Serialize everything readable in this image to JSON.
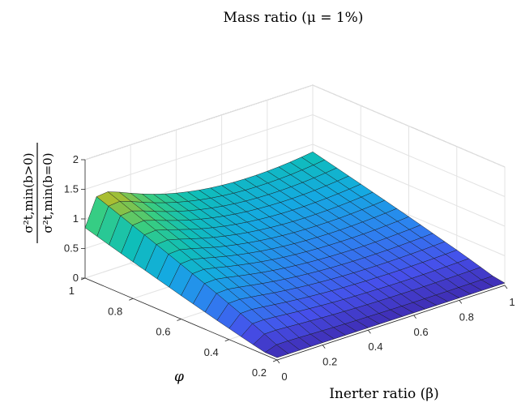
{
  "chart_data": {
    "type": "surface",
    "title": "Mass ratio (μ = 1%)",
    "xlabel": "Inerter ratio (β)",
    "ylabel": "φ",
    "zlabel": {
      "numerator": "σ²t,min(b>0)",
      "denominator": "σ²t,min(b=0)"
    },
    "xlim": [
      0,
      1
    ],
    "ylim": [
      0.2,
      1
    ],
    "zlim": [
      0,
      2
    ],
    "x_ticks": [
      "0",
      "0.2",
      "0.4",
      "0.6",
      "0.8",
      "1"
    ],
    "y_ticks": [
      "0.2",
      "0.4",
      "0.6",
      "0.8",
      "1"
    ],
    "z_ticks": [
      "0",
      "0.5",
      "1",
      "1.5",
      "2"
    ],
    "grid": true,
    "colormap": "parula",
    "surface_corners": {
      "beta_0_phi_1": 0.85,
      "beta_0_phi_0.2": 0.05,
      "beta_1_phi_1": 1.1,
      "beta_1_phi_0.2": 0.07
    },
    "peak": {
      "beta": 0.1,
      "phi": 1.0,
      "value": 1.6
    }
  }
}
